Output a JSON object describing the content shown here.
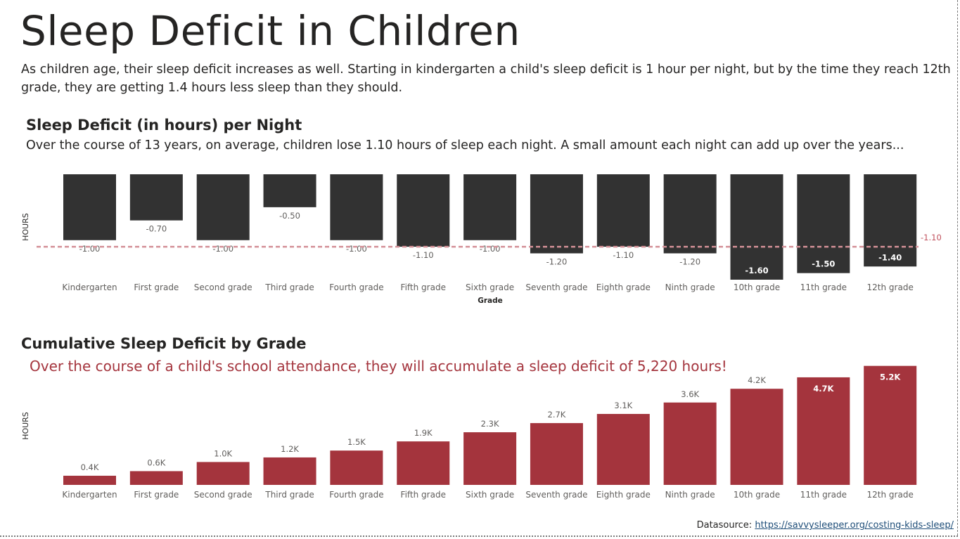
{
  "page": {
    "title": "Sleep Deficit in Children",
    "intro": "As children age, their sleep deficit increases as well.  Starting in kindergarten a child's sleep deficit is 1 hour per night, but by the time they reach 12th grade, they are getting 1.4 hours less sleep than they should."
  },
  "footer": {
    "label": "Datasource:",
    "link": "https://savvysleeper.org/costing-kids-sleep/"
  },
  "colors": {
    "nightly_bar": "#323232",
    "cumulative_bar": "#a4343d",
    "reference_line": "#d49097"
  },
  "chart_data": [
    {
      "type": "bar",
      "title": "Sleep Deficit (in hours) per Night",
      "subtitle": "Over the course of 13 years, on average, children lose 1.10 hours of sleep each night. A small amount each night can add up over the years...",
      "xlabel": "Grade",
      "ylabel": "HOURS",
      "categories": [
        "Kindergarten",
        "First grade",
        "Second grade",
        "Third grade",
        "Fourth grade",
        "Fifth grade",
        "Sixth grade",
        "Seventh grade",
        "Eighth grade",
        "Ninth grade",
        "10th grade",
        "11th grade",
        "12th grade"
      ],
      "values": [
        -1.0,
        -0.7,
        -1.0,
        -0.5,
        -1.0,
        -1.1,
        -1.0,
        -1.2,
        -1.1,
        -1.2,
        -1.6,
        -1.5,
        -1.4
      ],
      "labels": [
        "-1.00",
        "-0.70",
        "-1.00",
        "-0.50",
        "-1.00",
        "-1.10",
        "-1.00",
        "-1.20",
        "-1.10",
        "-1.20",
        "-1.60",
        "-1.50",
        "-1.40"
      ],
      "reference_line": {
        "value": -1.1,
        "label": "-1.10"
      },
      "ylim": [
        -1.6,
        0
      ]
    },
    {
      "type": "bar",
      "title": "Cumulative Sleep Deficit by Grade",
      "subtitle": "Over the course of a child's school attendance, they will accumulate a sleep deficit of 5,220 hours!",
      "xlabel": "",
      "ylabel": "HOURS",
      "categories": [
        "Kindergarten",
        "First grade",
        "Second grade",
        "Third grade",
        "Fourth grade",
        "Fifth grade",
        "Sixth grade",
        "Seventh grade",
        "Eighth grade",
        "Ninth grade",
        "10th grade",
        "11th grade",
        "12th grade"
      ],
      "values": [
        400,
        600,
        1000,
        1200,
        1500,
        1900,
        2300,
        2700,
        3100,
        3600,
        4200,
        4700,
        5200
      ],
      "labels": [
        "0.4K",
        "0.6K",
        "1.0K",
        "1.2K",
        "1.5K",
        "1.9K",
        "2.3K",
        "2.7K",
        "3.1K",
        "3.6K",
        "4.2K",
        "4.7K",
        "5.2K"
      ],
      "ylim": [
        0,
        5220
      ]
    }
  ]
}
